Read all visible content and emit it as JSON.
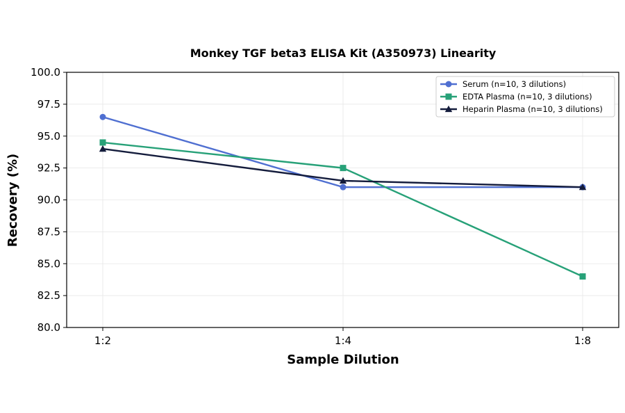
{
  "chart_data": {
    "type": "line",
    "title": "Monkey TGF beta3 ELISA Kit (A350973) Linearity",
    "xlabel": "Sample Dilution",
    "ylabel": "Recovery (%)",
    "categories": [
      "1:2",
      "1:4",
      "1:8"
    ],
    "ylim": [
      80.0,
      100.0
    ],
    "yticks": [
      "80.0",
      "82.5",
      "85.0",
      "87.5",
      "90.0",
      "92.5",
      "95.0",
      "97.5",
      "100.0"
    ],
    "grid": true,
    "legend_position": "top-right",
    "series": [
      {
        "name": "Serum (n=10, 3 dilutions)",
        "values": [
          96.5,
          91.0,
          91.0
        ],
        "color": "#4f6fd1",
        "marker": "circle"
      },
      {
        "name": "EDTA Plasma (n=10, 3 dilutions)",
        "values": [
          94.5,
          92.5,
          84.0
        ],
        "color": "#27a178",
        "marker": "square"
      },
      {
        "name": "Heparin Plasma (n=10, 3 dilutions)",
        "values": [
          94.0,
          91.5,
          91.0
        ],
        "color": "#141c3c",
        "marker": "triangle"
      }
    ]
  }
}
